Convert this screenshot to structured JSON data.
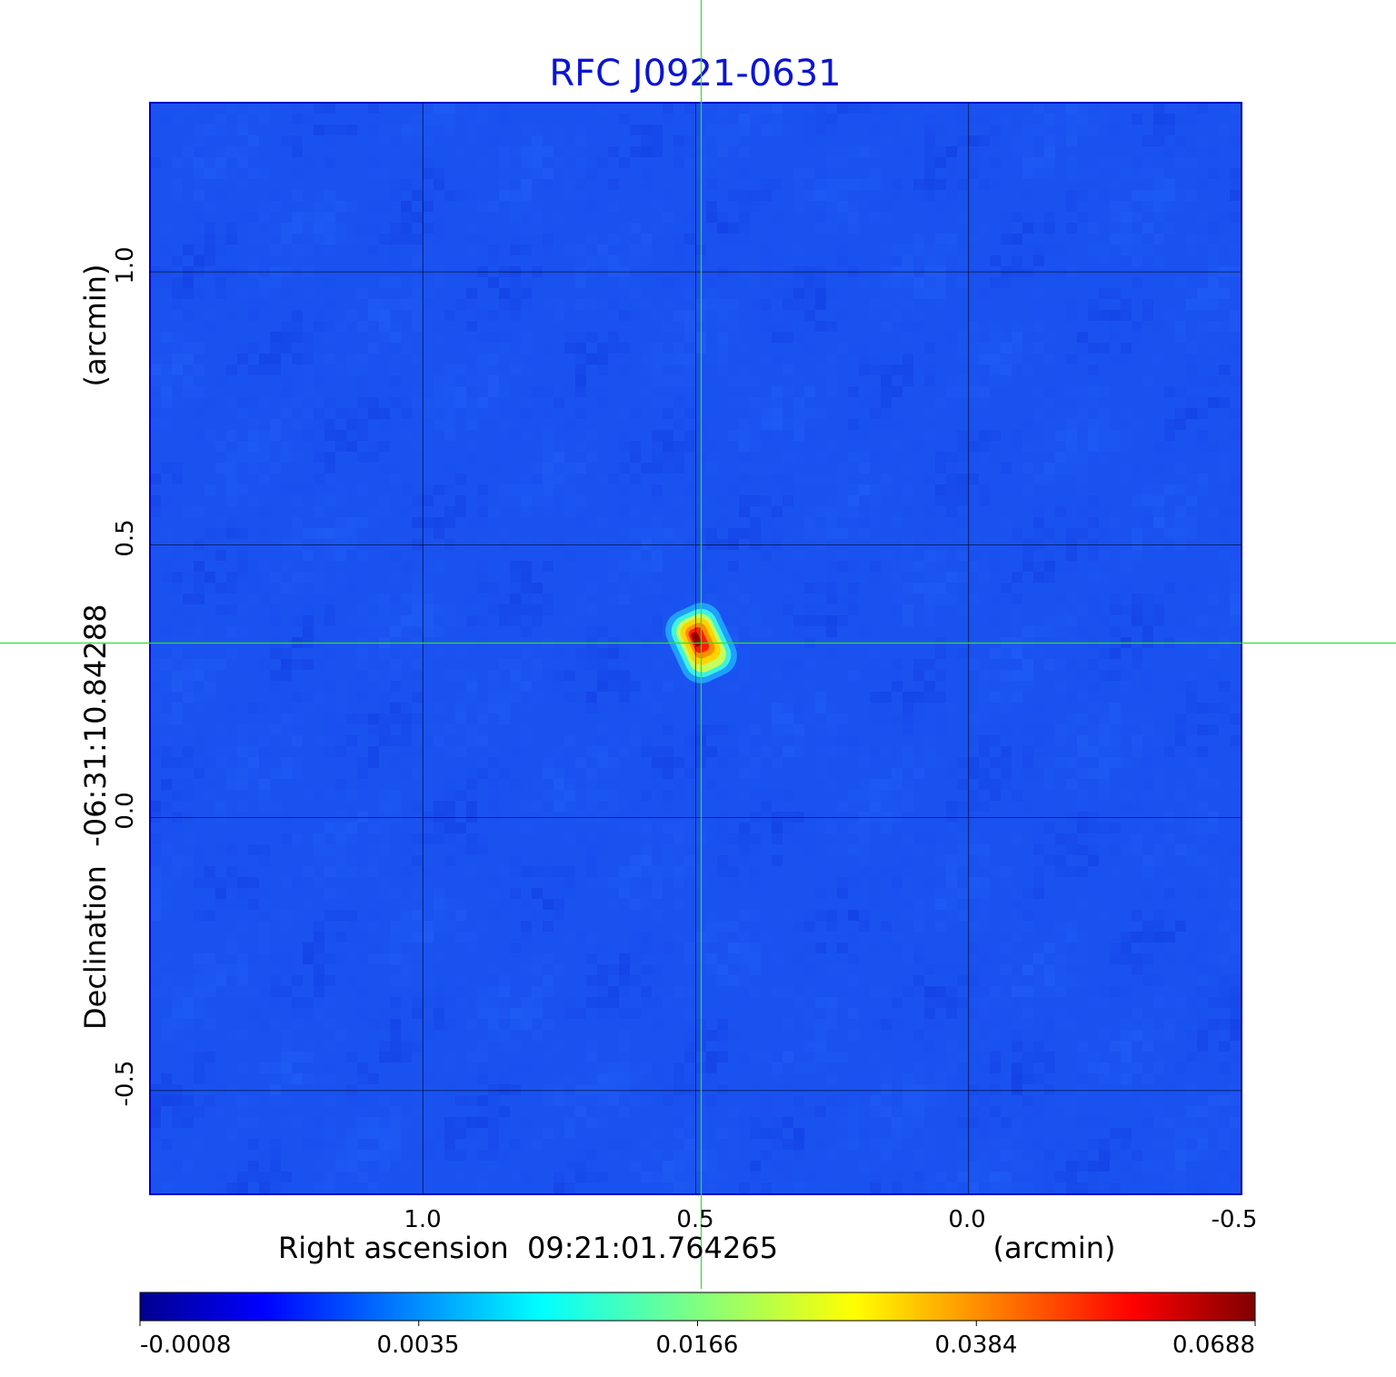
{
  "chart_data": {
    "type": "heatmap",
    "title": "RFC J0921-0631",
    "title_color": "#0a14d2",
    "xlabel": "Right ascension  09:21:01.764265",
    "xunit": "(arcmin)",
    "ylabel": "Declination  -06:31:10.84288",
    "yunit": "(arcmin)",
    "x_ticks": [
      "1.0",
      "0.5",
      "0.0",
      "-0.5"
    ],
    "y_ticks": [
      "1.0",
      "0.5",
      "0.0",
      "-0.5"
    ],
    "xlim": [
      1.5,
      -0.5
    ],
    "ylim": [
      -0.69,
      1.31
    ],
    "grid": true,
    "crosshair": {
      "x": 0.49,
      "y": 0.32,
      "color": "#33dd33"
    },
    "source": {
      "ra_offset": 0.49,
      "dec_offset": 0.32,
      "peak": 0.0688
    },
    "colorbar": {
      "orientation": "horizontal",
      "colormap": "jet",
      "ticks": [
        "-0.0008",
        "0.0035",
        "0.0166",
        "0.0384",
        "0.0688"
      ]
    },
    "colors": {
      "background_map": "#1a52f0",
      "grid": "#000000"
    }
  }
}
